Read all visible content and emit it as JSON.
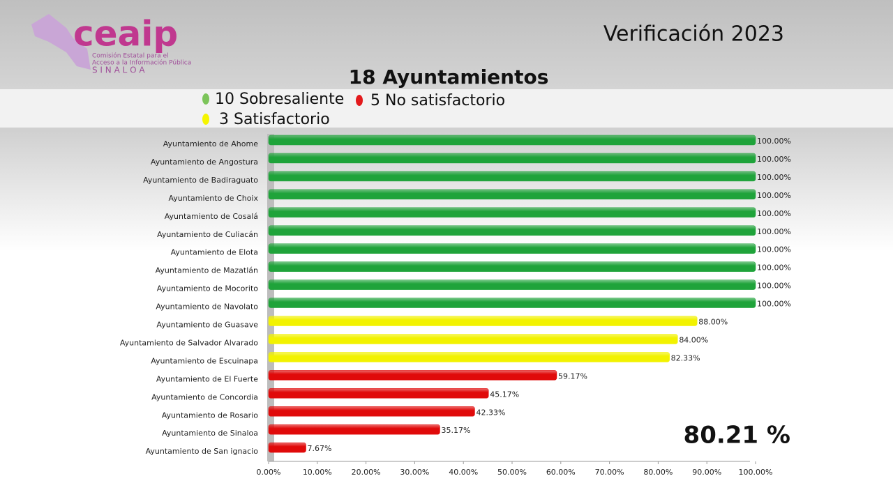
{
  "logo": {
    "name": "ceaip",
    "line1": "Comisión Estatal para el",
    "line2": "Acceso a la Información Pública",
    "line3": "S I N A L O A"
  },
  "chart_data": {
    "type": "hbar",
    "title": "Verificación 2023",
    "subtitle": "18 Ayuntamientos",
    "legend": [
      {
        "label": "10 Sobresaliente",
        "color": "#7cc45a"
      },
      {
        "label": "5 No satisfactorio",
        "color": "#e31a1c"
      },
      {
        "label": "3 Satisfactorio",
        "color": "#f5f500"
      }
    ],
    "total": "80.21 %",
    "categories": [
      "Ayuntamiento de Ahome",
      "Ayuntamiento de Angostura",
      "Ayuntamiento de Badiraguato",
      "Ayuntamiento de Choix",
      "Ayuntamiento de Cosalá",
      "Ayuntamiento de Culiacán",
      "Ayuntamiento de Elota",
      "Ayuntamiento de Mazatlán",
      "Ayuntamiento de Mocorito",
      "Ayuntamiento de Navolato",
      "Ayuntamiento de Guasave",
      "Ayuntamiento de Salvador Alvarado",
      "Ayuntamiento de Escuinapa",
      "Ayuntamiento de El Fuerte",
      "Ayuntamiento de Concordia",
      "Ayuntamiento de Rosario",
      "Ayuntamiento de Sinaloa",
      "Ayuntamiento de San ignacio"
    ],
    "values": [
      100,
      100,
      100,
      100,
      100,
      100,
      100,
      100,
      100,
      100,
      88,
      84,
      82.33,
      59.17,
      45.17,
      42.33,
      35.17,
      7.67
    ],
    "value_labels": [
      "100.00%",
      "100.00%",
      "100.00%",
      "100.00%",
      "100.00%",
      "100.00%",
      "100.00%",
      "100.00%",
      "100.00%",
      "100.00%",
      "88.00%",
      "84.00%",
      "82.33%",
      "59.17%",
      "45.17%",
      "42.33%",
      "35.17%",
      "7.67%"
    ],
    "colors": [
      "#1fa33a",
      "#1fa33a",
      "#1fa33a",
      "#1fa33a",
      "#1fa33a",
      "#1fa33a",
      "#1fa33a",
      "#1fa33a",
      "#1fa33a",
      "#1fa33a",
      "#f2f200",
      "#f2f200",
      "#f2f200",
      "#e00a0a",
      "#e00a0a",
      "#e00a0a",
      "#e00a0a",
      "#e00a0a"
    ],
    "xlim": [
      0,
      100
    ],
    "xticks": [
      {
        "value": 0,
        "label": "0.00%"
      },
      {
        "value": 10,
        "label": "10.00%"
      },
      {
        "value": 20,
        "label": "20.00%"
      },
      {
        "value": 30,
        "label": "30.00%"
      },
      {
        "value": 40,
        "label": "40.00%"
      },
      {
        "value": 50,
        "label": "50.00%"
      },
      {
        "value": 60,
        "label": "60.00%"
      },
      {
        "value": 70,
        "label": "70.00%"
      },
      {
        "value": 80,
        "label": "80.00%"
      },
      {
        "value": 90,
        "label": "90.00%"
      },
      {
        "value": 100,
        "label": "100.00%"
      }
    ]
  }
}
